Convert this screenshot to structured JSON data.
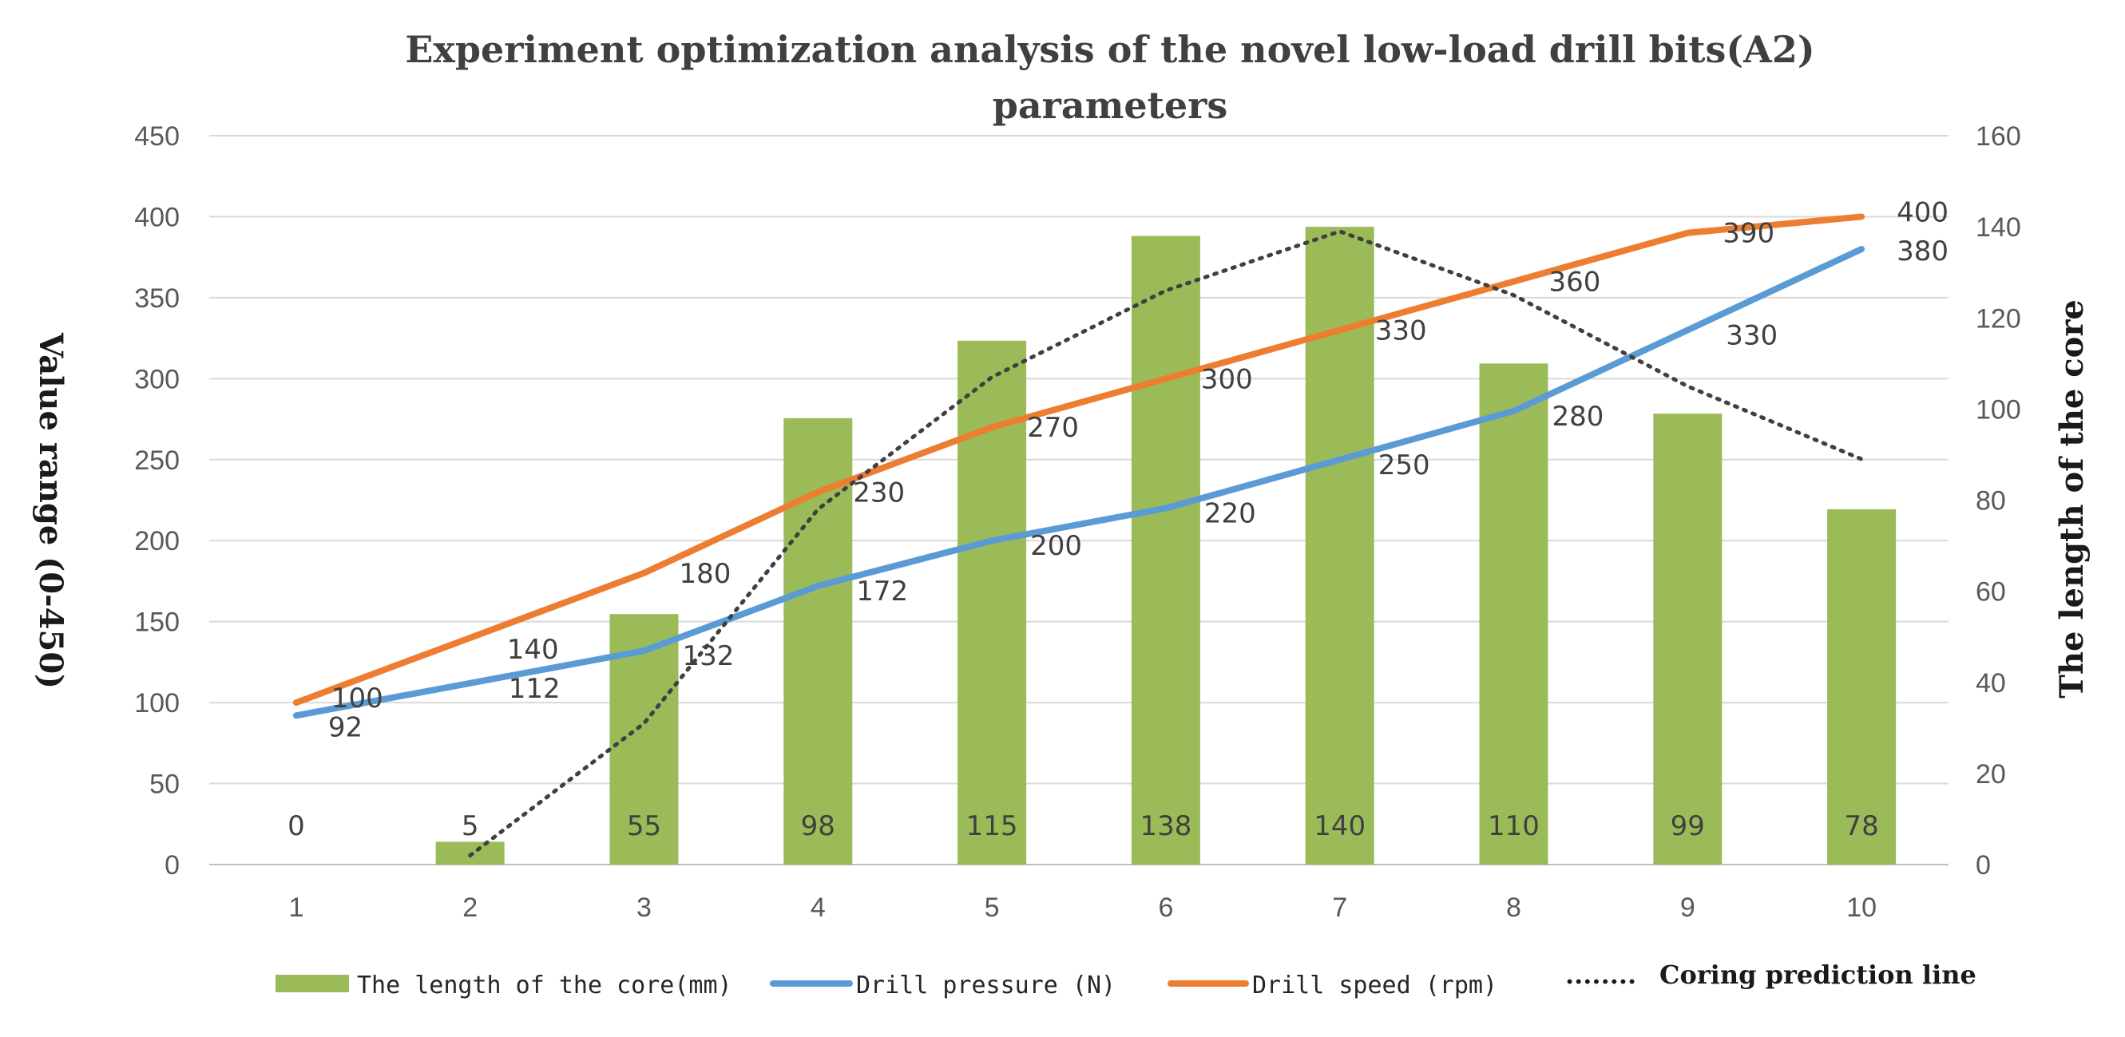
{
  "chart_data": {
    "type": "bar",
    "title_lines": [
      "Experiment optimization analysis of the novel low-load drill bits(A2)",
      "parameters"
    ],
    "ylabel_left": "Value range (0-450)",
    "ylabel_right": "The length of the core",
    "categories": [
      "1",
      "2",
      "3",
      "4",
      "5",
      "6",
      "7",
      "8",
      "9",
      "10"
    ],
    "left_axis": {
      "ylim": [
        0,
        450
      ],
      "ticks": [
        "0",
        "50",
        "100",
        "150",
        "200",
        "250",
        "300",
        "350",
        "400",
        "450"
      ]
    },
    "right_axis": {
      "ylim": [
        0,
        160
      ],
      "ticks": [
        "0",
        "20",
        "40",
        "60",
        "80",
        "100",
        "120",
        "140",
        "160"
      ]
    },
    "grid": true,
    "legend_position": "bottom",
    "series": [
      {
        "name": "The length of the core(mm)",
        "kind": "bar",
        "axis": "right",
        "color": "#9bbb59",
        "values": [
          0,
          5,
          55,
          98,
          115,
          138,
          140,
          110,
          99,
          78
        ],
        "labels": [
          "0",
          "5",
          "55",
          "98",
          "115",
          "138",
          "140",
          "110",
          "99",
          "78"
        ]
      },
      {
        "name": "Drill pressure (N)",
        "kind": "line",
        "axis": "left",
        "color": "#5b9bd5",
        "values": [
          92,
          112,
          132,
          172,
          200,
          220,
          250,
          280,
          330,
          380
        ],
        "labels": [
          "92",
          "112",
          "132",
          "172",
          "200",
          "220",
          "250",
          "280",
          "330",
          "380"
        ]
      },
      {
        "name": "Drill speed (rpm)",
        "kind": "line",
        "axis": "left",
        "color": "#ed7d31",
        "values": [
          100,
          140,
          180,
          230,
          270,
          300,
          330,
          360,
          390,
          400
        ],
        "labels": [
          "100",
          "140",
          "180",
          "230",
          "270",
          "300",
          "330",
          "360",
          "390",
          "400"
        ]
      },
      {
        "name": "Coring prediction line",
        "kind": "dotted-line",
        "axis": "right",
        "color": "#404040",
        "x": [
          2,
          3,
          4,
          5,
          6,
          7,
          8,
          9,
          10
        ],
        "values": [
          2,
          31,
          78,
          107,
          126,
          139,
          125,
          105,
          89
        ]
      }
    ],
    "legend": [
      {
        "label": "The length of the core(mm)",
        "marker": "bar"
      },
      {
        "label": "Drill pressure (N)",
        "marker": "line"
      },
      {
        "label": "Drill speed (rpm)",
        "marker": "line"
      },
      {
        "label": "Coring prediction line",
        "marker": "dots",
        "prefix": "........"
      }
    ]
  }
}
